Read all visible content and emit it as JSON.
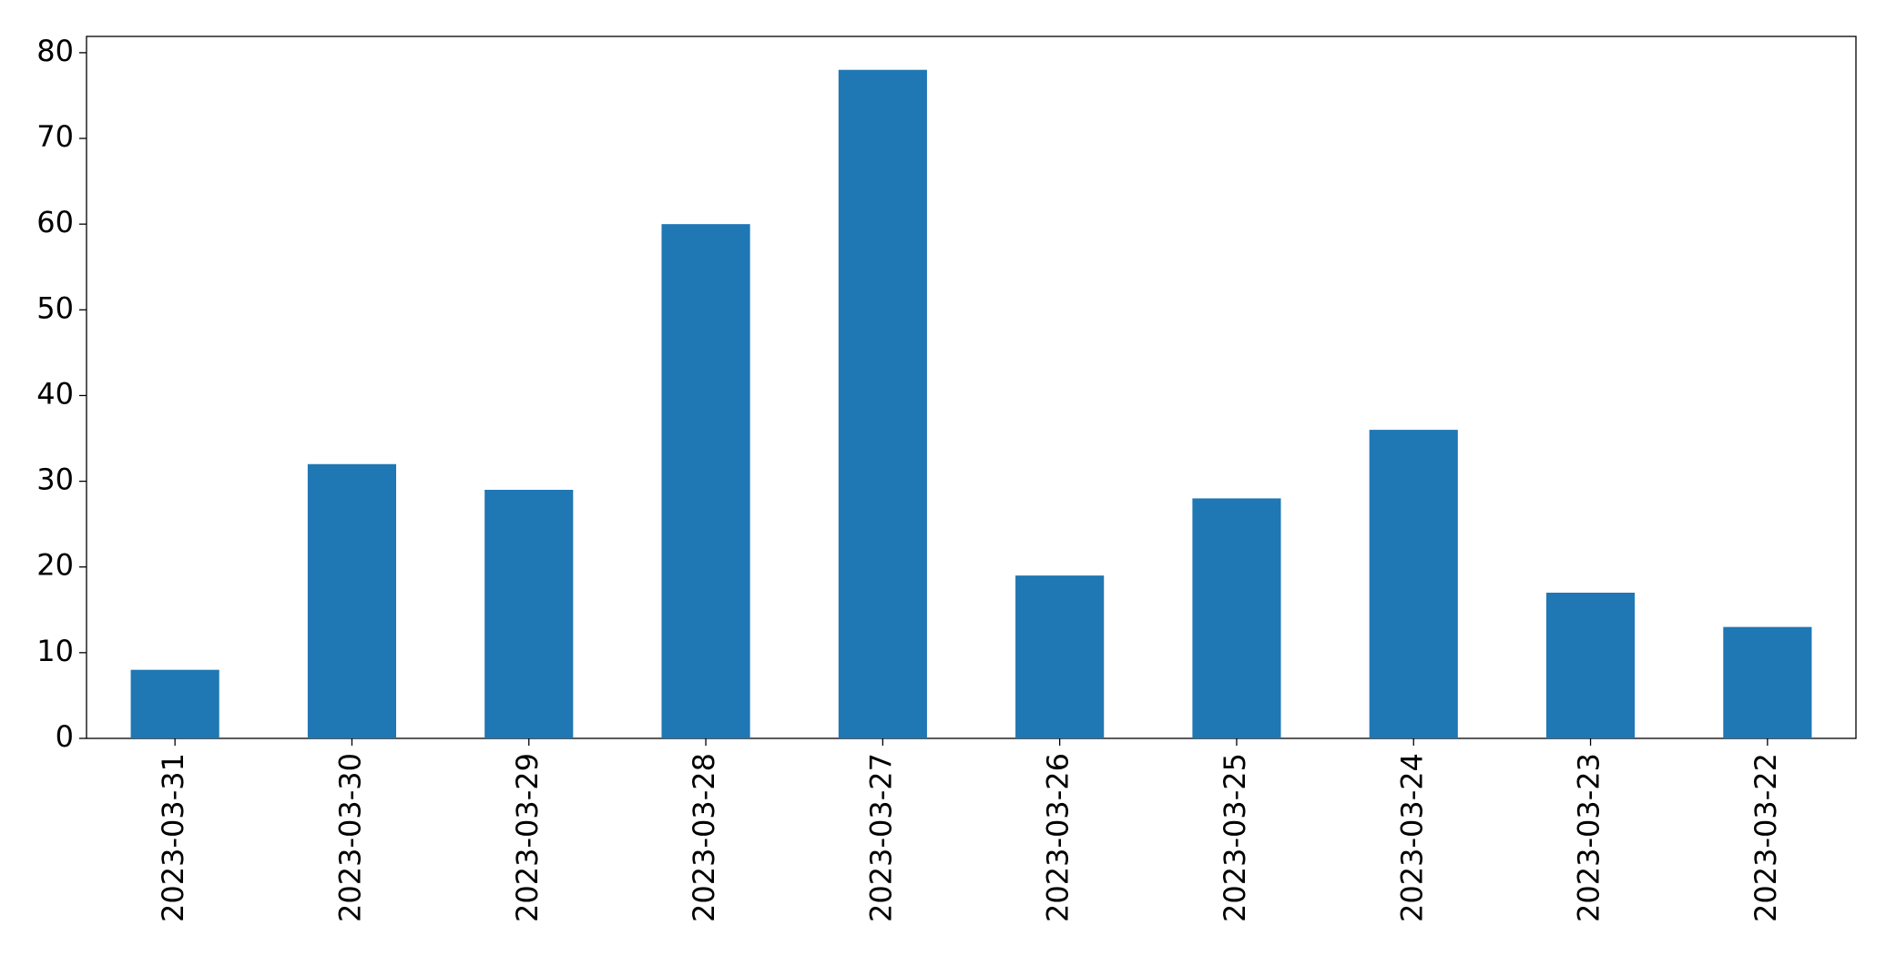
{
  "chart_data": {
    "type": "bar",
    "categories": [
      "2023-03-31",
      "2023-03-30",
      "2023-03-29",
      "2023-03-28",
      "2023-03-27",
      "2023-03-26",
      "2023-03-25",
      "2023-03-24",
      "2023-03-23",
      "2023-03-22"
    ],
    "values": [
      8,
      32,
      29,
      60,
      78,
      19,
      28,
      36,
      17,
      13
    ],
    "color": "#1f77b4",
    "ylim": [
      0,
      81.9
    ],
    "yticks": [
      0,
      10,
      20,
      30,
      40,
      50,
      60,
      70,
      80
    ],
    "grid": false
  }
}
